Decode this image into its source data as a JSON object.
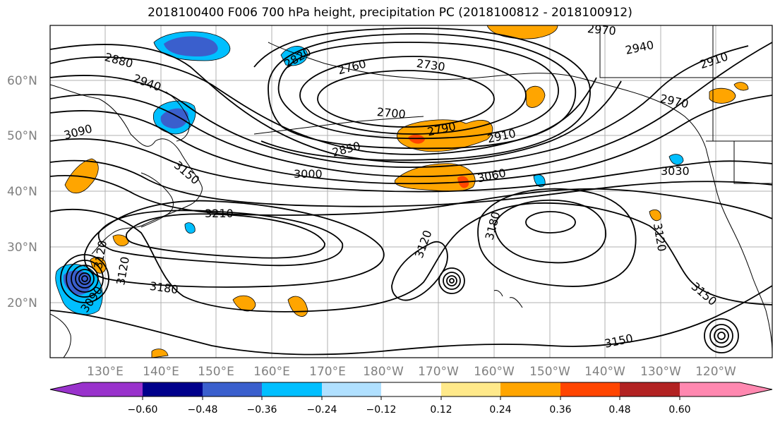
{
  "title": "2018100400 F006 700 hPa height, precipitation PC (2018100812 - 2018100912)",
  "map": {
    "background": "#ffffff",
    "grid_color": "#b0b0b0",
    "lat_labels": [
      "60°N",
      "50°N",
      "40°N",
      "30°N",
      "20°N"
    ],
    "lon_labels": [
      "130°E",
      "140°E",
      "150°E",
      "160°E",
      "170°E",
      "180°W",
      "170°W",
      "160°W",
      "150°W",
      "140°W",
      "130°W",
      "120°W"
    ]
  },
  "contour_labels": [
    {
      "text": "2880"
    },
    {
      "text": "2820"
    },
    {
      "text": "2760"
    },
    {
      "text": "2730"
    },
    {
      "text": "2970"
    },
    {
      "text": "2940"
    },
    {
      "text": "2910"
    },
    {
      "text": "2940"
    },
    {
      "text": "3090"
    },
    {
      "text": "2700"
    },
    {
      "text": "2790"
    },
    {
      "text": "2970"
    },
    {
      "text": "2850"
    },
    {
      "text": "2910"
    },
    {
      "text": "3000"
    },
    {
      "text": "3060"
    },
    {
      "text": "3030"
    },
    {
      "text": "3150"
    },
    {
      "text": "3210"
    },
    {
      "text": "3180"
    },
    {
      "text": "3120"
    },
    {
      "text": "3120"
    },
    {
      "text": "3120"
    },
    {
      "text": "3090"
    },
    {
      "text": "3120"
    },
    {
      "text": "3180"
    },
    {
      "text": "3150"
    },
    {
      "text": "3150"
    }
  ],
  "colorbar": {
    "colors": [
      "#9932cc",
      "#00008b",
      "#3a5fcd",
      "#00bfff",
      "#b0e0ff",
      "#ffffff",
      "#ffe98a",
      "#ffa500",
      "#ff4500",
      "#b22222",
      "#ff88b0"
    ],
    "tick_labels": [
      "−0.60",
      "−0.48",
      "−0.36",
      "−0.24",
      "−0.12",
      "0.12",
      "0.24",
      "0.36",
      "0.48",
      "0.60"
    ]
  }
}
